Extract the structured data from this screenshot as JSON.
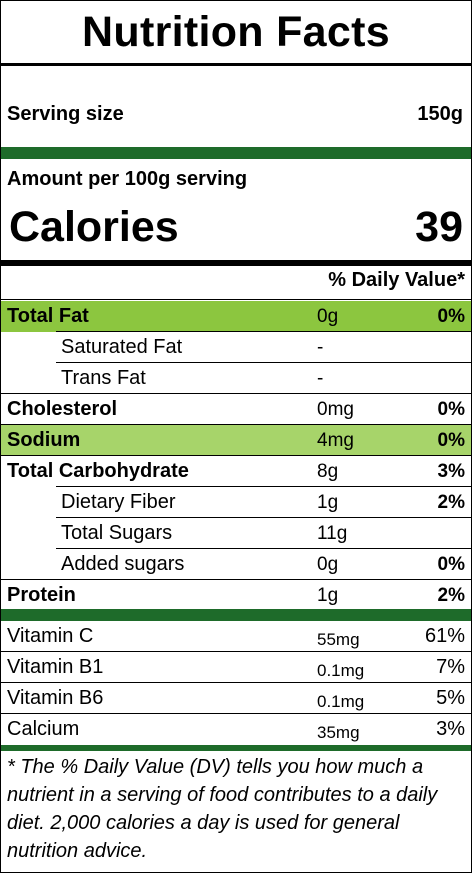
{
  "label": {
    "title": "Nutrition Facts",
    "serving_size_label": "Serving size",
    "serving_size_value": "150g",
    "amount_per": "Amount per 100g serving",
    "calories_label": "Calories",
    "calories_value": "39",
    "daily_value_header": "% Daily Value*",
    "highlight_color": "#8cc63f",
    "highlight_color_light": "#a7d46a",
    "rule_color": "#1e6b2a",
    "nutrients": [
      {
        "name": "Total Fat",
        "amount": "0g",
        "dv": "0%",
        "bold": true,
        "indent": false,
        "highlight": true
      },
      {
        "name": "Saturated Fat",
        "amount": "-",
        "dv": "",
        "bold": false,
        "indent": true,
        "highlight": false
      },
      {
        "name": "Trans Fat",
        "amount": "-",
        "dv": "",
        "bold": false,
        "indent": true,
        "highlight": false
      },
      {
        "name": "Cholesterol",
        "amount": "0mg",
        "dv": "0%",
        "bold": true,
        "indent": false,
        "highlight": false
      },
      {
        "name": "Sodium",
        "amount": "4mg",
        "dv": "0%",
        "bold": true,
        "indent": false,
        "highlight": true
      },
      {
        "name": "Total Carbohydrate",
        "amount": "8g",
        "dv": "3%",
        "bold": true,
        "indent": false,
        "highlight": false
      },
      {
        "name": "Dietary Fiber",
        "amount": "1g",
        "dv": "2%",
        "bold": false,
        "indent": true,
        "highlight": false
      },
      {
        "name": "Total Sugars",
        "amount": "11g",
        "dv": "",
        "bold": false,
        "indent": true,
        "highlight": false
      },
      {
        "name": "Added sugars",
        "amount": "0g",
        "dv": "0%",
        "bold": false,
        "indent": true,
        "highlight": false
      },
      {
        "name": "Protein",
        "amount": "1g",
        "dv": "2%",
        "bold": true,
        "indent": false,
        "highlight": false
      }
    ],
    "vitamins": [
      {
        "name": "Vitamin C",
        "amount": "55mg",
        "dv": "61%"
      },
      {
        "name": "Vitamin B1",
        "amount": "0.1mg",
        "dv": "7%"
      },
      {
        "name": "Vitamin B6",
        "amount": "0.1mg",
        "dv": "5%"
      },
      {
        "name": "Calcium",
        "amount": "35mg",
        "dv": "3%"
      }
    ],
    "footnote": "* The % Daily Value (DV) tells you how much a nutrient in a serving of food contributes to a daily diet. 2,000 calories a day is used for general nutrition advice."
  }
}
